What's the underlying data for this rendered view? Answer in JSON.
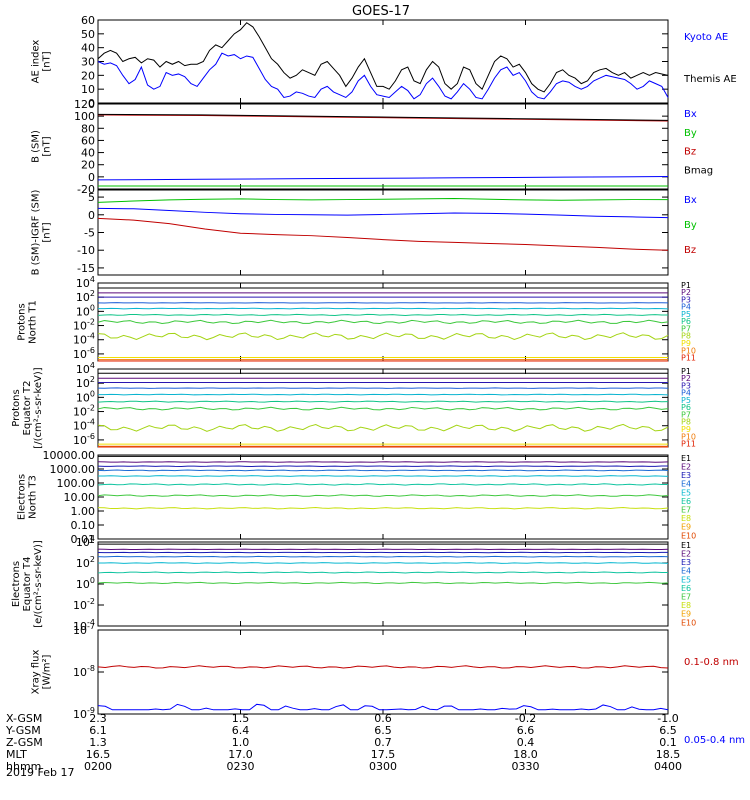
{
  "title": "GOES-17",
  "date": "2019 Feb 17",
  "colors": {
    "P": [
      "#000000",
      "#5a0a7a",
      "#2a16b0",
      "#1c5ed8",
      "#0ab4d0",
      "#10c488",
      "#3cc83c",
      "#a4d414",
      "#f0e000",
      "#f07c0a",
      "#e02000",
      "#b00000"
    ],
    "E": [
      "#000000",
      "#5a0a7a",
      "#1a1ab4",
      "#1a6ad4",
      "#0ab8d0",
      "#10c4a0",
      "#40c840",
      "#c8e010",
      "#f0a000",
      "#e04800",
      "#c00000",
      "#a00000"
    ]
  },
  "chart_data": [
    {
      "id": "ae",
      "type": "line",
      "ylabel": [
        "AE index",
        "[nT]"
      ],
      "ylim": [
        0,
        60
      ],
      "yticks": [
        "60",
        "50",
        "40",
        "30",
        "20",
        "10",
        "0"
      ],
      "series": [
        {
          "name": "Kyoto AE",
          "color": "#0000ff",
          "values": [
            30,
            28,
            29,
            27,
            20,
            14,
            17,
            26,
            13,
            10,
            12,
            22,
            20,
            21,
            19,
            14,
            12,
            18,
            24,
            28,
            36,
            34,
            35,
            32,
            34,
            33,
            25,
            17,
            12,
            10,
            4,
            5,
            8,
            7,
            5,
            4,
            10,
            12,
            8,
            6,
            4,
            8,
            16,
            20,
            12,
            6,
            5,
            4,
            8,
            12,
            9,
            3,
            6,
            14,
            18,
            12,
            5,
            3,
            8,
            14,
            10,
            4,
            3,
            10,
            18,
            24,
            26,
            20,
            22,
            16,
            8,
            4,
            3,
            8,
            14,
            16,
            15,
            12,
            10,
            12,
            16,
            18,
            20,
            19,
            18,
            17,
            14,
            10,
            12,
            16,
            14,
            12,
            4
          ]
        },
        {
          "name": "Themis AE",
          "color": "#000000",
          "values": [
            32,
            36,
            38,
            36,
            30,
            32,
            33,
            29,
            32,
            31,
            26,
            30,
            28,
            30,
            27,
            28,
            28,
            30,
            38,
            42,
            40,
            45,
            50,
            53,
            58,
            55,
            48,
            40,
            32,
            28,
            22,
            18,
            20,
            24,
            22,
            20,
            28,
            30,
            25,
            20,
            12,
            18,
            26,
            32,
            22,
            12,
            12,
            10,
            16,
            24,
            26,
            16,
            14,
            24,
            30,
            26,
            14,
            10,
            14,
            26,
            24,
            14,
            10,
            20,
            30,
            34,
            32,
            26,
            28,
            22,
            14,
            10,
            8,
            14,
            22,
            24,
            20,
            18,
            14,
            16,
            22,
            24,
            25,
            22,
            20,
            22,
            18,
            20,
            22,
            20,
            22,
            21,
            20
          ]
        }
      ]
    },
    {
      "id": "bsm",
      "type": "line",
      "ylabel": [
        "B (SM)",
        "[nT]"
      ],
      "ylim": [
        -20,
        120
      ],
      "yticks": [
        "120",
        "100",
        "80",
        "60",
        "40",
        "20",
        "0",
        "-20"
      ],
      "series": [
        {
          "name": "Bx",
          "color": "#0000ff",
          "values": [
            -5,
            -4.5,
            -4,
            -3.5,
            -3,
            -2.5,
            -2,
            -1.5,
            -1,
            -0.5,
            0,
            0.5
          ]
        },
        {
          "name": "By",
          "color": "#00c000",
          "values": [
            -15,
            -15,
            -15,
            -15,
            -15,
            -15,
            -15,
            -15,
            -15,
            -15,
            -15,
            -15
          ]
        },
        {
          "name": "Bz",
          "color": "#c00000",
          "values": [
            102,
            101.5,
            101,
            100,
            99,
            98,
            97,
            96,
            95,
            94,
            93,
            92
          ]
        },
        {
          "name": "Bmag",
          "color": "#000000",
          "values": [
            103,
            102.5,
            102,
            101,
            100,
            99,
            98,
            97,
            96,
            95,
            94,
            93
          ]
        }
      ]
    },
    {
      "id": "bigrf",
      "type": "line",
      "ylabel": [
        "B (SM)-IGRF (SM)",
        "[nT]"
      ],
      "ylim": [
        -17,
        7
      ],
      "yticks": [
        "5",
        "0",
        "-5",
        "-10",
        "-15"
      ],
      "ytickvals": [
        5,
        0,
        -5,
        -10,
        -15
      ],
      "series": [
        {
          "name": "Bx",
          "color": "#0000ff",
          "values": [
            1.8,
            1.7,
            1.2,
            0.7,
            0.3,
            0.1,
            0,
            -0.1,
            0.1,
            0.3,
            0.5,
            0.4,
            0.2,
            -0.1,
            -0.4,
            -0.6,
            -0.8
          ]
        },
        {
          "name": "By",
          "color": "#00c000",
          "values": [
            3.5,
            3.9,
            4.2,
            4.4,
            4.5,
            4.3,
            4.2,
            4.3,
            4.4,
            4.5,
            4.6,
            4.4,
            4.2,
            4.1,
            4.2,
            4.3,
            4.3
          ]
        },
        {
          "name": "Bz",
          "color": "#c00000",
          "values": [
            -1,
            -1.5,
            -2.5,
            -4,
            -5.2,
            -5.6,
            -5.9,
            -6.4,
            -7,
            -7.5,
            -7.8,
            -8.1,
            -8.4,
            -8.8,
            -9.2,
            -9.7,
            -10
          ]
        }
      ]
    },
    {
      "id": "pn",
      "type": "line",
      "log": true,
      "ylabel": [
        "Protons",
        "North T1"
      ],
      "ylim": [
        -7,
        4
      ],
      "ytick_exps": [
        4,
        2,
        0,
        -2,
        -4,
        -6
      ],
      "channels": [
        "P1",
        "P2",
        "P3",
        "P4",
        "P5",
        "P6",
        "P7",
        "P8",
        "P9",
        "P10",
        "P11"
      ],
      "levels": [
        3.3,
        2.6,
        2.0,
        1.2,
        0.4,
        -0.5,
        -1.5,
        -3.5,
        -6.5,
        -6.8,
        -7.0
      ],
      "ripple": [
        0,
        0,
        0,
        0.03,
        0.05,
        0.08,
        0.25,
        0.5,
        0,
        0,
        0
      ]
    },
    {
      "id": "pe",
      "type": "line",
      "log": true,
      "ylabel": [
        "Protons",
        "Equator T2",
        "[/(cm²-s-sr-keV)]"
      ],
      "ylim": [
        -7,
        4
      ],
      "ytick_exps": [
        4,
        2,
        0,
        -2,
        -4,
        -6
      ],
      "channels": [
        "P1",
        "P2",
        "P3",
        "P4",
        "P5",
        "P6",
        "P7",
        "P8",
        "P9",
        "P10",
        "P11"
      ],
      "levels": [
        3.4,
        2.7,
        2.1,
        1.3,
        0.4,
        -0.6,
        -1.6,
        -4.3,
        -6.6,
        -6.9,
        -7.0
      ],
      "ripple": [
        0,
        0,
        0,
        0.03,
        0.05,
        0.08,
        0.2,
        0.5,
        0,
        0,
        0
      ]
    },
    {
      "id": "en",
      "type": "line",
      "log": true,
      "ylabel": [
        "Electrons",
        "North T3"
      ],
      "ylim": [
        -2,
        4
      ],
      "yticks": [
        "10000.00",
        "1000.00",
        "100.00",
        "10.00",
        "1.00",
        "0.10",
        "0.01"
      ],
      "channels": [
        "E1",
        "E2",
        "E3",
        "E4",
        "E5",
        "E6",
        "E7",
        "E8",
        "E9",
        "E10"
      ],
      "levels": [
        3.9,
        3.5,
        3.2,
        2.9,
        2.5,
        1.9,
        1.1,
        0.2,
        -2.1,
        -2.2
      ],
      "ripple": [
        0,
        0.02,
        0.02,
        0.03,
        0.03,
        0.05,
        0.06,
        0.05,
        0,
        0
      ]
    },
    {
      "id": "ee",
      "type": "line",
      "log": true,
      "ylabel": [
        "Electrons",
        "Equator T4",
        "[e/(cm²-s-sr-keV)]"
      ],
      "ylim": [
        -4,
        4
      ],
      "ytick_exps": [
        4,
        2,
        0,
        -2,
        -4
      ],
      "channels": [
        "E1",
        "E2",
        "E3",
        "E4",
        "E5",
        "E6",
        "E7",
        "E8",
        "E9",
        "E10"
      ],
      "levels": [
        3.8,
        3.3,
        3.0,
        2.6,
        2.0,
        1.1,
        0.1,
        -5,
        -5,
        -5
      ],
      "ripple": [
        0,
        0.02,
        0.02,
        0.03,
        0.04,
        0.05,
        0.06,
        0,
        0,
        0
      ]
    },
    {
      "id": "xray",
      "type": "line",
      "log": true,
      "ylabel": [
        "Xray flux",
        "[W/m²]"
      ],
      "ylim": [
        -9,
        -7
      ],
      "ytick_exps": [
        -7,
        -8,
        -9
      ],
      "series": [
        {
          "name": "0.1-0.8 nm",
          "color": "#c00000",
          "level": -7.88
        },
        {
          "name": "0.05-0.4 nm",
          "color": "#0000ff",
          "level": -8.9
        }
      ]
    }
  ],
  "footer": {
    "labels": [
      "X-GSM",
      "Y-GSM",
      "Z-GSM",
      "MLT",
      "hhmm"
    ],
    "columns": [
      [
        "2.3",
        "6.1",
        "1.3",
        "16.5",
        "0200"
      ],
      [
        "1.5",
        "6.4",
        "1.0",
        "17.0",
        "0230"
      ],
      [
        "0.6",
        "6.5",
        "0.7",
        "17.5",
        "0300"
      ],
      [
        "-0.2",
        "6.6",
        "0.4",
        "18.0",
        "0330"
      ],
      [
        "-1.0",
        "6.5",
        "0.1",
        "18.5",
        "0400"
      ]
    ]
  }
}
